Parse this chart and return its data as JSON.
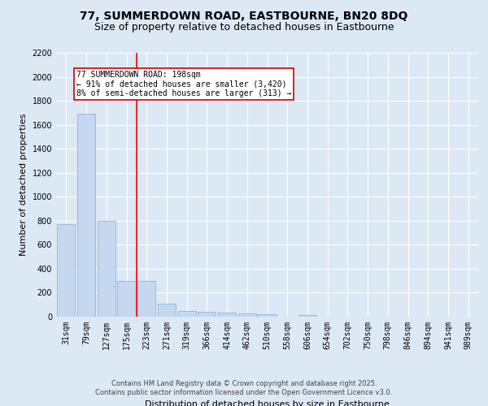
{
  "title": "77, SUMMERDOWN ROAD, EASTBOURNE, BN20 8DQ",
  "subtitle": "Size of property relative to detached houses in Eastbourne",
  "xlabel": "Distribution of detached houses by size in Eastbourne",
  "ylabel": "Number of detached properties",
  "categories": [
    "31sqm",
    "79sqm",
    "127sqm",
    "175sqm",
    "223sqm",
    "271sqm",
    "319sqm",
    "366sqm",
    "414sqm",
    "462sqm",
    "510sqm",
    "558sqm",
    "606sqm",
    "654sqm",
    "702sqm",
    "750sqm",
    "798sqm",
    "846sqm",
    "894sqm",
    "941sqm",
    "989sqm"
  ],
  "values": [
    775,
    1690,
    800,
    300,
    300,
    110,
    45,
    40,
    35,
    25,
    20,
    0,
    15,
    0,
    0,
    0,
    0,
    0,
    0,
    0,
    0
  ],
  "bar_color": "#c5d8f0",
  "bar_edge_color": "#7aafd4",
  "red_line_x": 3.5,
  "annotation_text": "77 SUMMERDOWN ROAD: 198sqm\n← 91% of detached houses are smaller (3,420)\n8% of semi-detached houses are larger (313) →",
  "annotation_box_color": "#ffffff",
  "annotation_box_edge": "#cc0000",
  "background_color": "#dde8f5",
  "grid_color": "#ffffff",
  "title_fontsize": 10,
  "subtitle_fontsize": 9,
  "label_fontsize": 8,
  "tick_fontsize": 7,
  "annotation_fontsize": 7,
  "footer_line1": "Contains HM Land Registry data © Crown copyright and database right 2025.",
  "footer_line2": "Contains public sector information licensed under the Open Government Licence v3.0.",
  "ylim": [
    0,
    2200
  ],
  "yticks": [
    0,
    200,
    400,
    600,
    800,
    1000,
    1200,
    1400,
    1600,
    1800,
    2000,
    2200
  ]
}
